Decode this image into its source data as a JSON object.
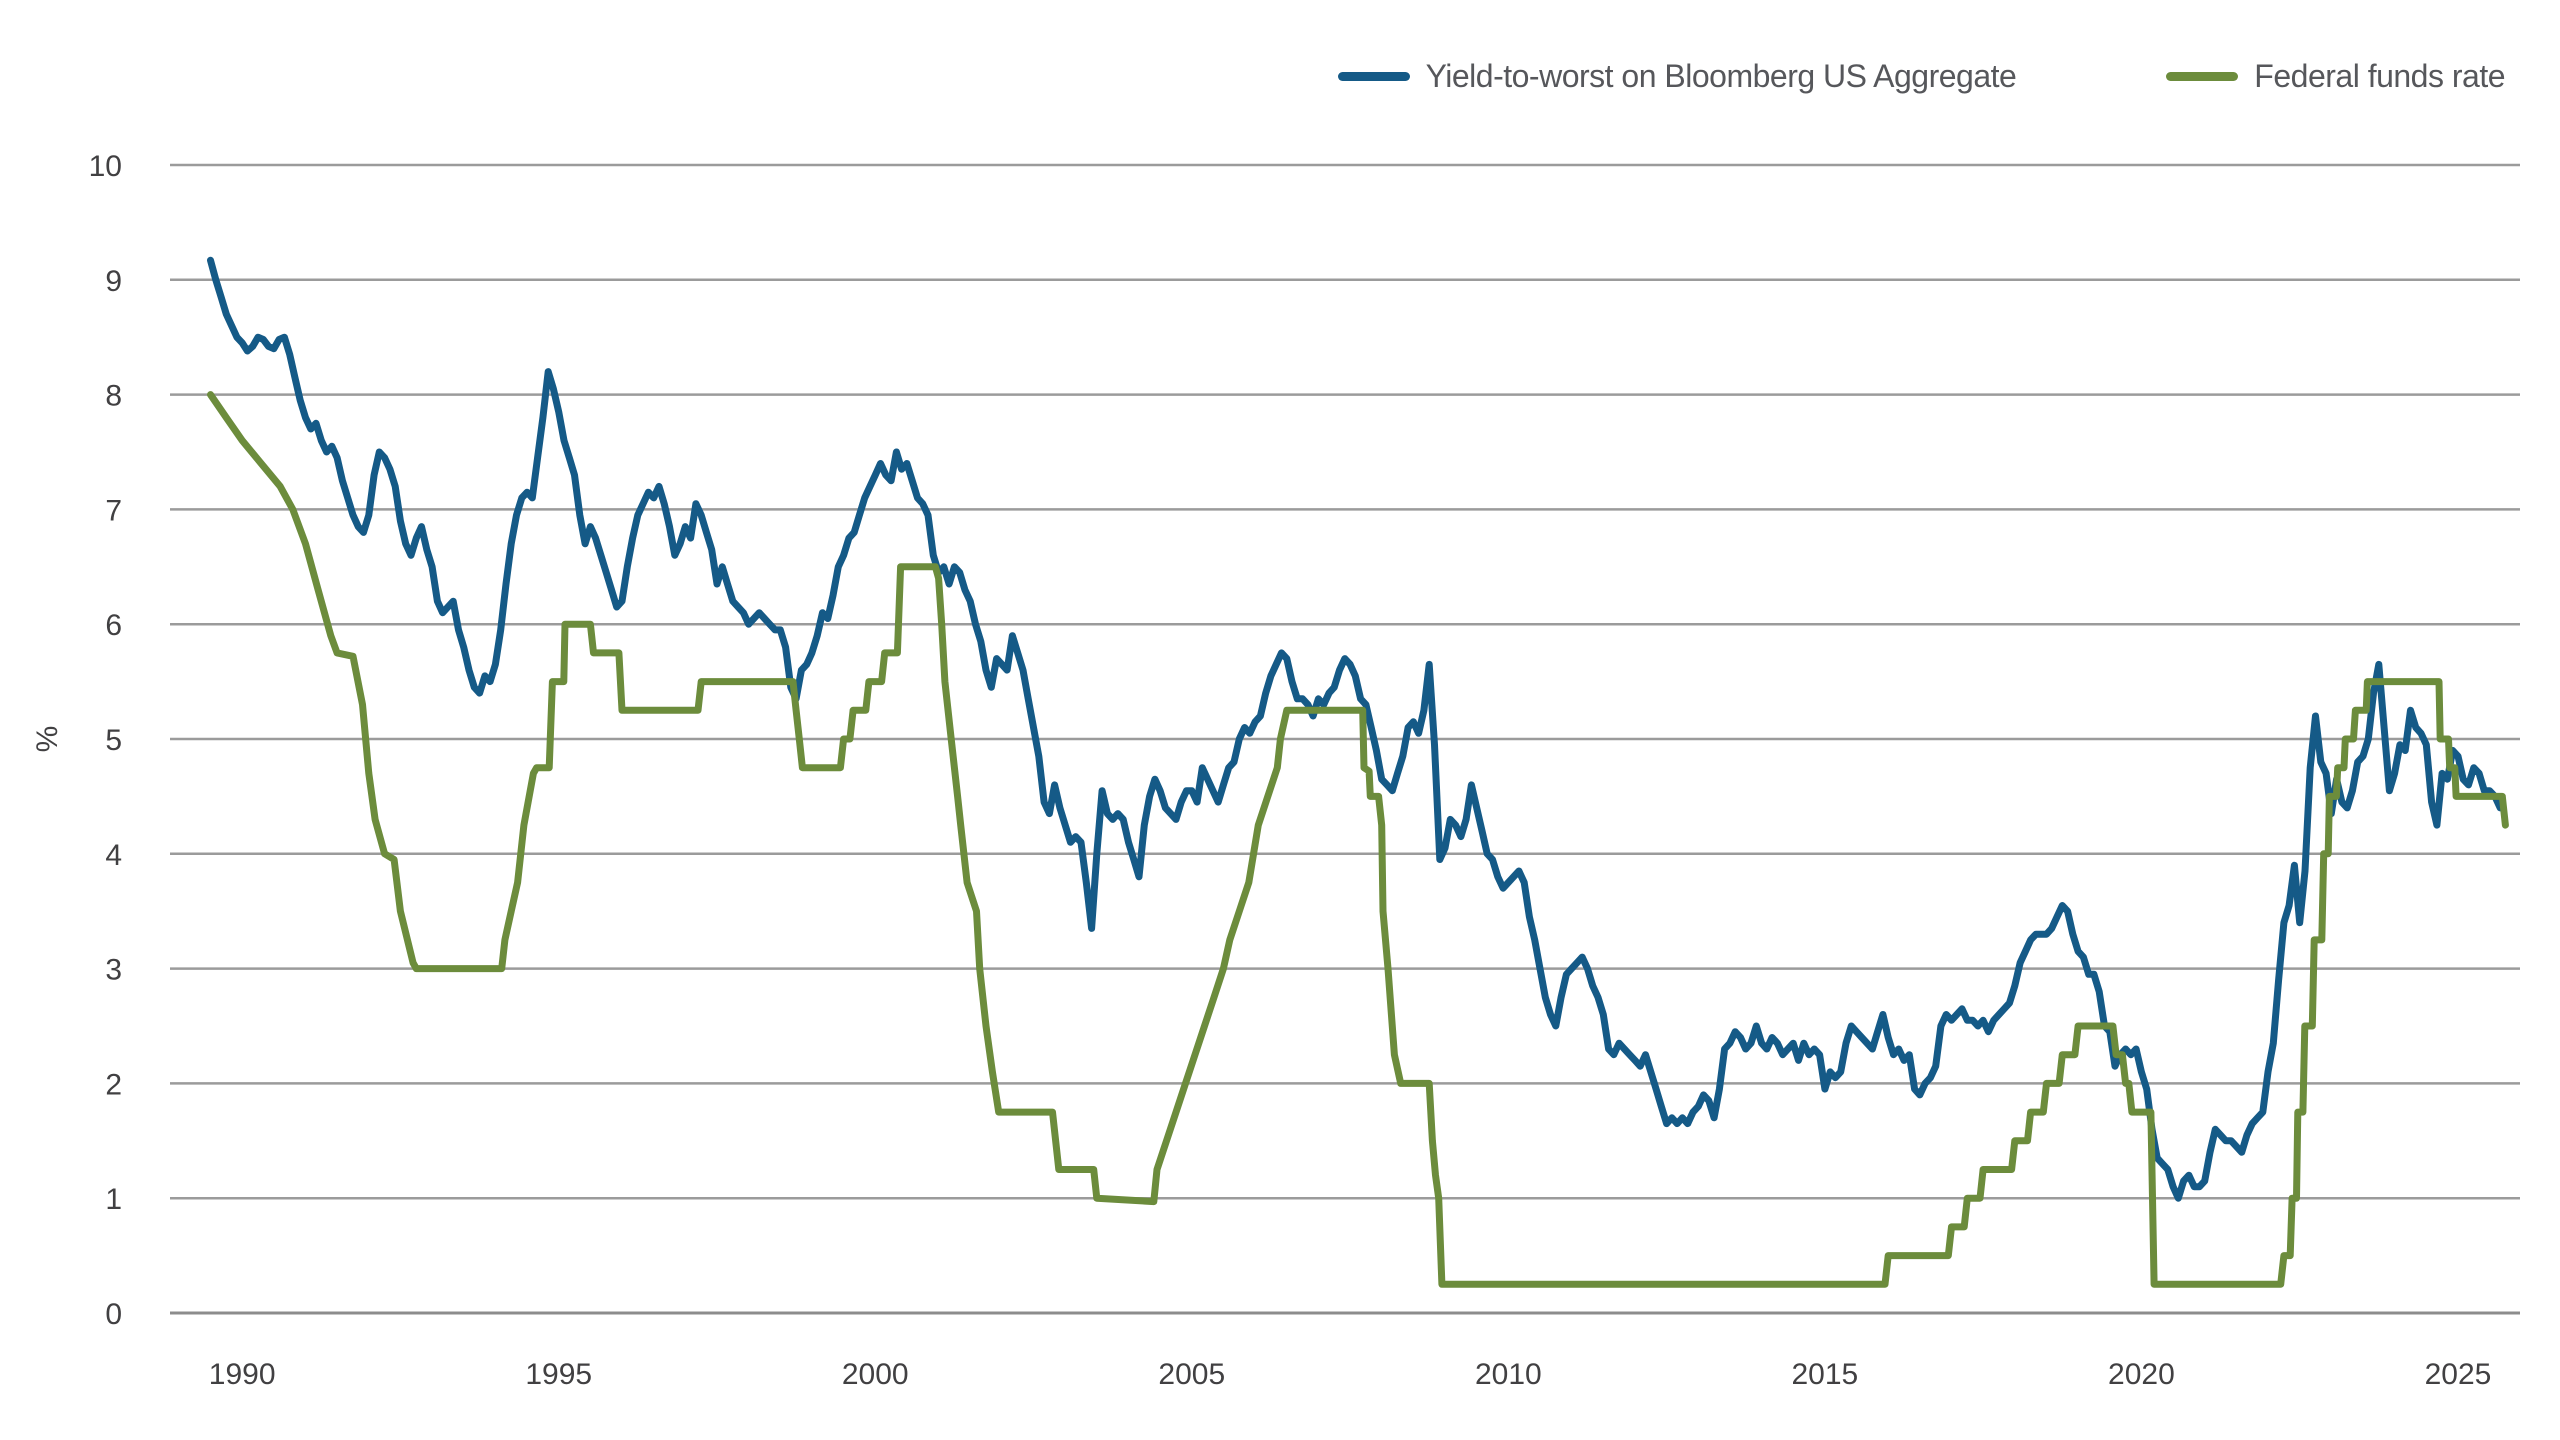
{
  "legend": {
    "items": [
      {
        "label": "Yield-to-worst on Bloomberg US Aggregate",
        "color": "#155a87"
      },
      {
        "label": "Federal funds rate",
        "color": "#6c8c3c"
      }
    ]
  },
  "chart_data": {
    "type": "line",
    "title": "",
    "xlabel": "",
    "ylabel": "%",
    "ylim": [
      0,
      10
    ],
    "xlim": [
      1988.86,
      2025.98
    ],
    "grid": "horizontal-only",
    "gridline_color": "#9b9b9b",
    "legend_position": "top-right",
    "y_ticks": [
      0,
      1,
      2,
      3,
      4,
      5,
      6,
      7,
      8,
      9,
      10
    ],
    "x_ticks": [
      1990,
      1995,
      2000,
      2005,
      2010,
      2015,
      2020,
      2025
    ],
    "series": [
      {
        "name": "Yield-to-worst on Bloomberg US Aggregate",
        "color": "#155a87",
        "sampling": "monthly",
        "start_year_decimal": 1989.5,
        "interval_years": 0.0833333,
        "values": [
          9.17,
          9.0,
          8.85,
          8.7,
          8.6,
          8.5,
          8.45,
          8.38,
          8.42,
          8.5,
          8.48,
          8.42,
          8.4,
          8.48,
          8.5,
          8.35,
          8.15,
          7.95,
          7.8,
          7.7,
          7.75,
          7.6,
          7.5,
          7.55,
          7.45,
          7.25,
          7.1,
          6.95,
          6.85,
          6.8,
          6.95,
          7.3,
          7.5,
          7.45,
          7.35,
          7.2,
          6.9,
          6.7,
          6.6,
          6.75,
          6.85,
          6.65,
          6.5,
          6.2,
          6.1,
          6.15,
          6.2,
          5.95,
          5.8,
          5.6,
          5.45,
          5.4,
          5.55,
          5.5,
          5.65,
          5.95,
          6.35,
          6.7,
          6.95,
          7.1,
          7.15,
          7.1,
          7.45,
          7.8,
          8.2,
          8.05,
          7.85,
          7.6,
          7.45,
          7.3,
          6.95,
          6.7,
          6.85,
          6.75,
          6.6,
          6.45,
          6.3,
          6.15,
          6.2,
          6.5,
          6.75,
          6.95,
          7.05,
          7.15,
          7.1,
          7.2,
          7.05,
          6.85,
          6.6,
          6.7,
          6.85,
          6.75,
          7.05,
          6.95,
          6.8,
          6.65,
          6.35,
          6.5,
          6.35,
          6.2,
          6.15,
          6.1,
          6.0,
          6.05,
          6.1,
          6.05,
          6.0,
          5.95,
          5.95,
          5.8,
          5.45,
          5.35,
          5.6,
          5.65,
          5.75,
          5.9,
          6.1,
          6.05,
          6.25,
          6.5,
          6.6,
          6.75,
          6.8,
          6.95,
          7.1,
          7.2,
          7.3,
          7.4,
          7.3,
          7.25,
          7.5,
          7.35,
          7.4,
          7.25,
          7.1,
          7.05,
          6.95,
          6.6,
          6.45,
          6.5,
          6.35,
          6.5,
          6.45,
          6.3,
          6.2,
          6.0,
          5.85,
          5.6,
          5.45,
          5.7,
          5.65,
          5.6,
          5.9,
          5.75,
          5.6,
          5.35,
          5.1,
          4.85,
          4.45,
          4.35,
          4.6,
          4.4,
          4.25,
          4.1,
          4.15,
          4.1,
          3.75,
          3.35,
          4.0,
          4.55,
          4.35,
          4.3,
          4.35,
          4.3,
          4.1,
          3.95,
          3.8,
          4.25,
          4.5,
          4.65,
          4.55,
          4.4,
          4.35,
          4.3,
          4.45,
          4.55,
          4.55,
          4.45,
          4.75,
          4.65,
          4.55,
          4.45,
          4.6,
          4.75,
          4.8,
          5.0,
          5.1,
          5.05,
          5.15,
          5.2,
          5.4,
          5.55,
          5.65,
          5.75,
          5.7,
          5.5,
          5.35,
          5.35,
          5.3,
          5.2,
          5.35,
          5.3,
          5.4,
          5.45,
          5.6,
          5.7,
          5.65,
          5.55,
          5.35,
          5.3,
          5.1,
          4.9,
          4.65,
          4.6,
          4.55,
          4.7,
          4.85,
          5.1,
          5.15,
          5.05,
          5.25,
          5.65,
          4.95,
          3.95,
          4.05,
          4.3,
          4.25,
          4.15,
          4.3,
          4.6,
          4.4,
          4.2,
          4.0,
          3.95,
          3.8,
          3.7,
          3.75,
          3.8,
          3.85,
          3.75,
          3.45,
          3.25,
          3.0,
          2.75,
          2.6,
          2.5,
          2.75,
          2.95,
          3.0,
          3.05,
          3.1,
          3.0,
          2.85,
          2.75,
          2.6,
          2.3,
          2.25,
          2.35,
          2.3,
          2.25,
          2.2,
          2.15,
          2.25,
          2.1,
          1.95,
          1.8,
          1.65,
          1.7,
          1.65,
          1.7,
          1.65,
          1.75,
          1.8,
          1.9,
          1.85,
          1.7,
          1.95,
          2.3,
          2.35,
          2.45,
          2.4,
          2.3,
          2.35,
          2.5,
          2.35,
          2.3,
          2.4,
          2.35,
          2.25,
          2.3,
          2.35,
          2.2,
          2.35,
          2.25,
          2.3,
          2.25,
          1.95,
          2.1,
          2.05,
          2.1,
          2.35,
          2.5,
          2.45,
          2.4,
          2.35,
          2.3,
          2.45,
          2.6,
          2.4,
          2.25,
          2.3,
          2.2,
          2.25,
          1.95,
          1.9,
          2.0,
          2.05,
          2.15,
          2.5,
          2.6,
          2.55,
          2.6,
          2.65,
          2.55,
          2.55,
          2.5,
          2.55,
          2.45,
          2.55,
          2.6,
          2.65,
          2.7,
          2.85,
          3.05,
          3.15,
          3.25,
          3.3,
          3.3,
          3.3,
          3.35,
          3.45,
          3.55,
          3.5,
          3.3,
          3.15,
          3.1,
          2.95,
          2.95,
          2.8,
          2.5,
          2.45,
          2.15,
          2.25,
          2.3,
          2.25,
          2.3,
          2.1,
          1.95,
          1.6,
          1.35,
          1.3,
          1.25,
          1.1,
          1.0,
          1.15,
          1.2,
          1.1,
          1.1,
          1.15,
          1.4,
          1.6,
          1.55,
          1.5,
          1.5,
          1.45,
          1.4,
          1.55,
          1.65,
          1.7,
          1.75,
          2.1,
          2.35,
          2.9,
          3.4,
          3.55,
          3.9,
          3.4,
          3.85,
          4.75,
          5.2,
          4.8,
          4.7,
          4.35,
          4.65,
          4.45,
          4.4,
          4.55,
          4.8,
          4.85,
          5.0,
          5.4,
          5.65,
          5.1,
          4.55,
          4.7,
          4.95,
          4.9,
          5.25,
          5.1,
          5.05,
          4.95,
          4.45,
          4.25,
          4.7,
          4.65,
          4.9,
          4.85,
          4.65,
          4.6,
          4.75,
          4.7,
          4.55,
          4.55,
          4.5,
          4.4
        ]
      },
      {
        "name": "Federal funds rate",
        "color": "#6c8c3c",
        "sampling": "breakpoints",
        "points": [
          [
            1989.5,
            8.0
          ],
          [
            1989.75,
            7.8
          ],
          [
            1990.0,
            7.6
          ],
          [
            1990.3,
            7.4
          ],
          [
            1990.6,
            7.2
          ],
          [
            1990.8,
            7.0
          ],
          [
            1991.0,
            6.7
          ],
          [
            1991.2,
            6.3
          ],
          [
            1991.4,
            5.9
          ],
          [
            1991.5,
            5.75
          ],
          [
            1991.75,
            5.72
          ],
          [
            1991.9,
            5.3
          ],
          [
            1992.0,
            4.7
          ],
          [
            1992.1,
            4.3
          ],
          [
            1992.25,
            4.0
          ],
          [
            1992.4,
            3.95
          ],
          [
            1992.5,
            3.5
          ],
          [
            1992.7,
            3.05
          ],
          [
            1992.75,
            3.0
          ],
          [
            1994.1,
            3.0
          ],
          [
            1994.15,
            3.25
          ],
          [
            1994.25,
            3.5
          ],
          [
            1994.35,
            3.75
          ],
          [
            1994.45,
            4.25
          ],
          [
            1994.6,
            4.7
          ],
          [
            1994.65,
            4.75
          ],
          [
            1994.85,
            4.75
          ],
          [
            1994.9,
            5.5
          ],
          [
            1995.08,
            5.5
          ],
          [
            1995.1,
            6.0
          ],
          [
            1995.5,
            6.0
          ],
          [
            1995.55,
            5.75
          ],
          [
            1995.95,
            5.75
          ],
          [
            1996.0,
            5.25
          ],
          [
            1997.2,
            5.25
          ],
          [
            1997.25,
            5.5
          ],
          [
            1998.7,
            5.5
          ],
          [
            1998.75,
            5.25
          ],
          [
            1998.8,
            5.0
          ],
          [
            1998.85,
            4.75
          ],
          [
            1999.45,
            4.75
          ],
          [
            1999.5,
            5.0
          ],
          [
            1999.6,
            5.0
          ],
          [
            1999.65,
            5.25
          ],
          [
            1999.85,
            5.25
          ],
          [
            1999.9,
            5.5
          ],
          [
            2000.1,
            5.5
          ],
          [
            2000.15,
            5.75
          ],
          [
            2000.35,
            5.75
          ],
          [
            2000.4,
            6.5
          ],
          [
            2000.95,
            6.5
          ],
          [
            2001.0,
            6.4
          ],
          [
            2001.05,
            6.0
          ],
          [
            2001.1,
            5.5
          ],
          [
            2001.2,
            5.0
          ],
          [
            2001.3,
            4.5
          ],
          [
            2001.35,
            4.25
          ],
          [
            2001.45,
            3.75
          ],
          [
            2001.6,
            3.5
          ],
          [
            2001.65,
            3.0
          ],
          [
            2001.75,
            2.5
          ],
          [
            2001.85,
            2.1
          ],
          [
            2001.95,
            1.75
          ],
          [
            2002.8,
            1.75
          ],
          [
            2002.9,
            1.25
          ],
          [
            2003.45,
            1.25
          ],
          [
            2003.5,
            1.0
          ],
          [
            2004.4,
            0.97
          ],
          [
            2004.45,
            1.25
          ],
          [
            2004.6,
            1.5
          ],
          [
            2004.75,
            1.75
          ],
          [
            2004.9,
            2.0
          ],
          [
            2005.05,
            2.25
          ],
          [
            2005.2,
            2.5
          ],
          [
            2005.35,
            2.75
          ],
          [
            2005.5,
            3.0
          ],
          [
            2005.6,
            3.25
          ],
          [
            2005.75,
            3.5
          ],
          [
            2005.9,
            3.75
          ],
          [
            2006.05,
            4.25
          ],
          [
            2006.2,
            4.5
          ],
          [
            2006.35,
            4.75
          ],
          [
            2006.4,
            5.0
          ],
          [
            2006.5,
            5.25
          ],
          [
            2007.7,
            5.25
          ],
          [
            2007.72,
            4.75
          ],
          [
            2007.8,
            4.72
          ],
          [
            2007.82,
            4.5
          ],
          [
            2007.95,
            4.5
          ],
          [
            2008.0,
            4.25
          ],
          [
            2008.02,
            3.5
          ],
          [
            2008.1,
            3.0
          ],
          [
            2008.2,
            2.25
          ],
          [
            2008.3,
            2.0
          ],
          [
            2008.75,
            2.0
          ],
          [
            2008.8,
            1.5
          ],
          [
            2008.85,
            1.2
          ],
          [
            2008.9,
            1.0
          ],
          [
            2008.95,
            0.25
          ],
          [
            2015.95,
            0.25
          ],
          [
            2016.0,
            0.5
          ],
          [
            2016.95,
            0.5
          ],
          [
            2017.0,
            0.75
          ],
          [
            2017.2,
            0.75
          ],
          [
            2017.25,
            1.0
          ],
          [
            2017.45,
            1.0
          ],
          [
            2017.5,
            1.25
          ],
          [
            2017.95,
            1.25
          ],
          [
            2018.0,
            1.5
          ],
          [
            2018.2,
            1.5
          ],
          [
            2018.25,
            1.75
          ],
          [
            2018.45,
            1.75
          ],
          [
            2018.5,
            2.0
          ],
          [
            2018.7,
            2.0
          ],
          [
            2018.75,
            2.25
          ],
          [
            2018.95,
            2.25
          ],
          [
            2019.0,
            2.5
          ],
          [
            2019.55,
            2.5
          ],
          [
            2019.6,
            2.25
          ],
          [
            2019.7,
            2.25
          ],
          [
            2019.75,
            2.0
          ],
          [
            2019.8,
            2.0
          ],
          [
            2019.85,
            1.75
          ],
          [
            2020.15,
            1.75
          ],
          [
            2020.2,
            0.25
          ],
          [
            2022.2,
            0.25
          ],
          [
            2022.25,
            0.5
          ],
          [
            2022.35,
            0.5
          ],
          [
            2022.38,
            1.0
          ],
          [
            2022.45,
            1.0
          ],
          [
            2022.47,
            1.75
          ],
          [
            2022.55,
            1.75
          ],
          [
            2022.58,
            2.5
          ],
          [
            2022.7,
            2.5
          ],
          [
            2022.73,
            3.25
          ],
          [
            2022.85,
            3.25
          ],
          [
            2022.88,
            4.0
          ],
          [
            2022.95,
            4.0
          ],
          [
            2022.97,
            4.5
          ],
          [
            2023.08,
            4.5
          ],
          [
            2023.1,
            4.75
          ],
          [
            2023.2,
            4.75
          ],
          [
            2023.22,
            5.0
          ],
          [
            2023.35,
            5.0
          ],
          [
            2023.38,
            5.25
          ],
          [
            2023.55,
            5.25
          ],
          [
            2023.57,
            5.5
          ],
          [
            2024.7,
            5.5
          ],
          [
            2024.72,
            5.0
          ],
          [
            2024.85,
            5.0
          ],
          [
            2024.87,
            4.75
          ],
          [
            2024.95,
            4.75
          ],
          [
            2024.97,
            4.5
          ],
          [
            2025.7,
            4.5
          ],
          [
            2025.75,
            4.25
          ]
        ]
      }
    ]
  },
  "axis": {
    "y_unit_label": "%",
    "y_tick_labels": [
      "0",
      "1",
      "2",
      "3",
      "4",
      "5",
      "6",
      "7",
      "8",
      "9",
      "10"
    ],
    "x_tick_labels": [
      "1990",
      "1995",
      "2000",
      "2005",
      "2010",
      "2015",
      "2020",
      "2025"
    ]
  }
}
